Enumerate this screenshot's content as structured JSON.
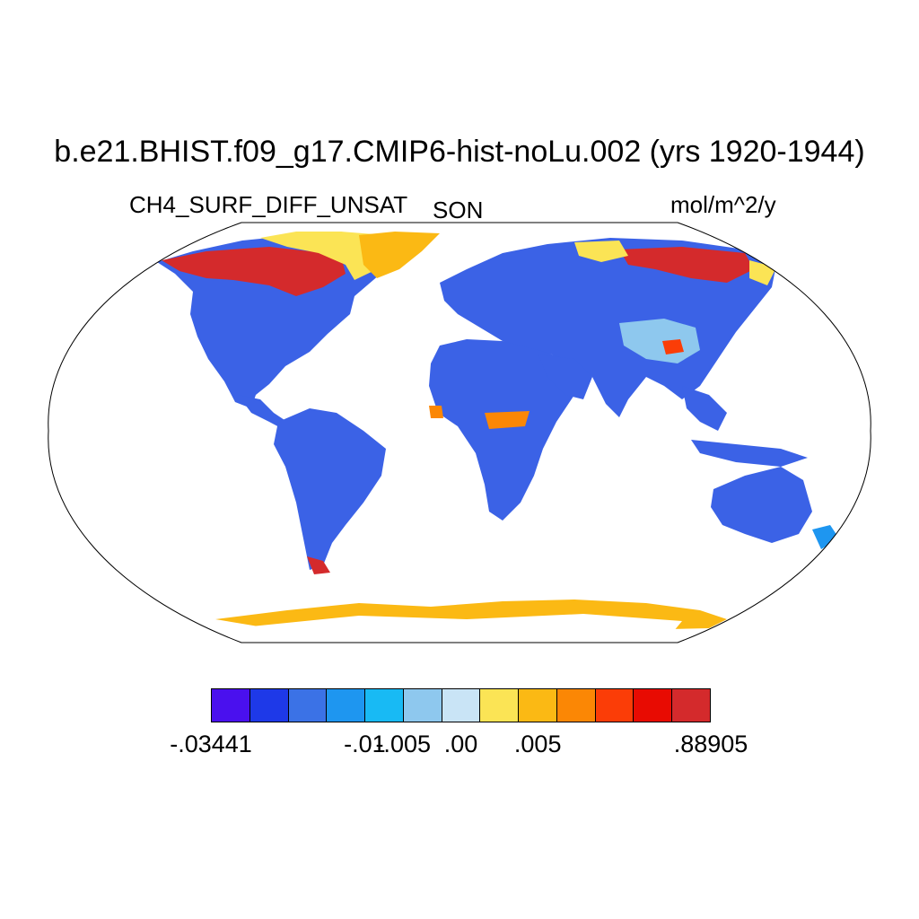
{
  "title": "b.e21.BHIST.f09_g17.CMIP6-hist-noLu.002 (yrs 1920-1944)",
  "variable": "CH4_SURF_DIFF_UNSAT",
  "season": "SON",
  "units": "mol/m^2/y",
  "colorbar": {
    "colors": [
      "#4a10ee",
      "#1e39e8",
      "#3b72e6",
      "#1e96f0",
      "#18baf4",
      "#8ec8ee",
      "#c9e4f6",
      "#fbe455",
      "#fbb914",
      "#fb8705",
      "#fb3d07",
      "#e80b02",
      "#d42a2c"
    ],
    "labels": [
      {
        "text": "-.03441",
        "boundary": 0
      },
      {
        "text": "-.01",
        "boundary": 4
      },
      {
        "text": "-.005",
        "boundary": 5
      },
      {
        "text": ".00",
        "boundary": 6.5
      },
      {
        "text": ".005",
        "boundary": 8.5
      },
      {
        "text": ".88905",
        "boundary": 13
      }
    ]
  },
  "map": {
    "projection": "robinson",
    "ocean_color": "#ffffff",
    "land_base_color": "#3b62e6"
  }
}
